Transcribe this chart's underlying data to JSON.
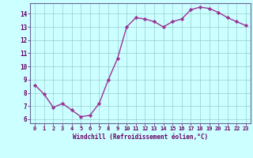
{
  "x": [
    0,
    1,
    2,
    3,
    4,
    5,
    6,
    7,
    8,
    9,
    10,
    11,
    12,
    13,
    14,
    15,
    16,
    17,
    18,
    19,
    20,
    21,
    22,
    23
  ],
  "y": [
    8.6,
    7.9,
    6.9,
    7.2,
    6.7,
    6.2,
    6.3,
    7.2,
    9.0,
    10.6,
    13.0,
    13.7,
    13.6,
    13.4,
    13.0,
    13.4,
    13.6,
    14.3,
    14.5,
    14.4,
    14.1,
    13.7,
    13.4,
    13.1
  ],
  "xlabel": "Windchill (Refroidissement éolien,°C)",
  "ylim": [
    5.7,
    14.8
  ],
  "xlim": [
    -0.5,
    23.5
  ],
  "yticks": [
    6,
    7,
    8,
    9,
    10,
    11,
    12,
    13,
    14
  ],
  "xticks": [
    0,
    1,
    2,
    3,
    4,
    5,
    6,
    7,
    8,
    9,
    10,
    11,
    12,
    13,
    14,
    15,
    16,
    17,
    18,
    19,
    20,
    21,
    22,
    23
  ],
  "line_color": "#993399",
  "bg_color": "#ccffff",
  "grid_color": "#99cccc",
  "spine_color": "#666699",
  "text_color": "#660066",
  "marker": "D",
  "marker_size": 2.2,
  "line_width": 1.0
}
